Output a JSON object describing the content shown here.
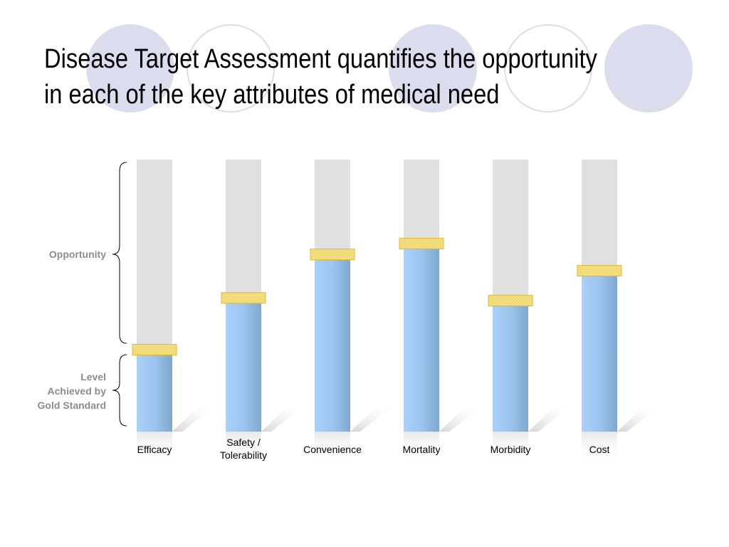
{
  "slide": {
    "title_line1": "Disease Target Assessment quantifies the opportunity",
    "title_line2": "in each of the key attributes of medical need"
  },
  "annotations": {
    "opportunity": "Opportunity",
    "level_line1": "Level",
    "level_line2": "Achieved by",
    "level_line3": "Gold Standard"
  },
  "chart_data": {
    "type": "bar",
    "categories": [
      [
        "Efficacy"
      ],
      [
        "Safety /",
        "Tolerability"
      ],
      [
        "Convenience"
      ],
      [
        "Mortality"
      ],
      [
        "Morbidity"
      ],
      [
        "Cost"
      ]
    ],
    "values": [
      30,
      49,
      65,
      69,
      48,
      59
    ],
    "ylim": [
      0,
      100
    ],
    "colors": {
      "background_column": "#e0e0e0",
      "bar_light": "#a9d1fa",
      "bar_dark": "#7fa8d0",
      "marker_fill": "#f7e38a",
      "marker_stroke": "#e0b830",
      "decor_circle": "#dcdcef"
    }
  }
}
